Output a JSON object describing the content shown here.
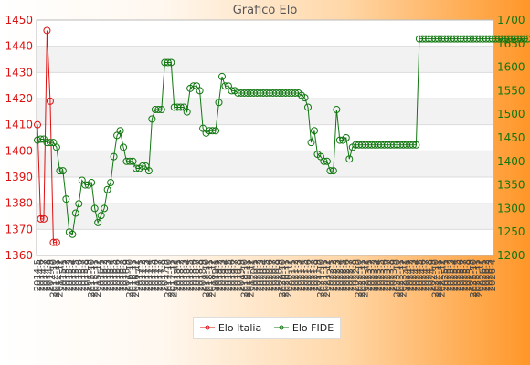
{
  "chart_data": {
    "type": "line",
    "title": "Grafico Elo",
    "left_axis": {
      "ylim": [
        1360,
        1450
      ],
      "ticks": [
        1360,
        1370,
        1380,
        1390,
        1400,
        1410,
        1420,
        1430,
        1440,
        1450
      ],
      "color": "#dd1111"
    },
    "right_axis": {
      "ylim": [
        1200,
        1700
      ],
      "ticks": [
        1200,
        1250,
        1300,
        1350,
        1400,
        1450,
        1500,
        1550,
        1600,
        1650,
        1700
      ],
      "color": "#117711"
    },
    "x_tick_labels": [
      "2014-5",
      "2014-6",
      "2014-7",
      "2014-8",
      "2014-9",
      "2014-10",
      "2014-11",
      "2014-12",
      "2015-1",
      "2015-2",
      "2015-3",
      "2015-4",
      "2015-5",
      "2015-6",
      "2015-7",
      "2015-8",
      "2015-9",
      "2015-10",
      "2015-11",
      "2015-12",
      "2016-1",
      "2016-2",
      "2016-3",
      "2016-4",
      "2016-5",
      "2016-6",
      "2016-7",
      "2016-8",
      "2016-9",
      "2016-10",
      "2016-11",
      "2016-12",
      "2017-1",
      "2017-2",
      "2017-3",
      "2017-4",
      "2017-5",
      "2017-6",
      "2017-7",
      "2017-8",
      "2017-9",
      "2017-10",
      "2017-11",
      "2017-12",
      "2018-1",
      "2018-2",
      "2018-3",
      "2018-4",
      "2018-5",
      "2018-6",
      "2018-7",
      "2018-8",
      "2018-9",
      "2018-10",
      "2018-11",
      "2018-12",
      "2019-1",
      "2019-2",
      "2019-3",
      "2019-4",
      "2019-5",
      "2019-6",
      "2019-7",
      "2019-8",
      "2019-9",
      "2019-10",
      "2019-11",
      "2019-12",
      "2020-1",
      "2020-2",
      "2020-3",
      "2020-4",
      "2020-5",
      "2020-6",
      "2020-7",
      "2020-8",
      "2020-9",
      "2020-10",
      "2020-11",
      "2020-12",
      "2021-1",
      "2021-2",
      "2021-3",
      "2021-4",
      "2021-5",
      "2021-6",
      "2021-7",
      "2021-8",
      "2021-9",
      "2021-10",
      "2021-11",
      "2021-12",
      "2022-1",
      "2022-2",
      "2022-3",
      "2022-4",
      "2022-5",
      "2022-6",
      "2022-7",
      "2022-8",
      "2022-9",
      "2022-10",
      "2022-11",
      "2022-12",
      "2023-1",
      "2023-2",
      "2023-3",
      "2023-4",
      "2023-5",
      "2023-6",
      "2023-7",
      "2023-8",
      "2023-9",
      "2023-10",
      "2023-11",
      "2023-12",
      "2024-1",
      "2024-2",
      "2024-3",
      "2024-4",
      "2024-5",
      "2024-6",
      "2024-7",
      "2024-8",
      "2024-9",
      "2024-10",
      "2024-11",
      "2024-12",
      "2025-1",
      "2025-2",
      "2025-3",
      "2025-4",
      "2025-5",
      "2025-6",
      "2025-7",
      "2025-8",
      "2025-9",
      "2025-10",
      "2025-11",
      "2025-12",
      "2026-1",
      "2026-2",
      "2026-3",
      "2026-4"
    ],
    "grid": true,
    "legend_position": "bottom",
    "series": [
      {
        "name": "Elo Italia",
        "axis": "left",
        "color": "#dd1111",
        "values": [
          1410,
          1374,
          1374,
          1446,
          1419,
          1365,
          1365
        ]
      },
      {
        "name": "Elo FIDE",
        "axis": "right",
        "color": "#117711",
        "values": [
          1445,
          1447,
          1447,
          1440,
          1440,
          1440,
          1430,
          1380,
          1380,
          1320,
          1250,
          1245,
          1290,
          1310,
          1360,
          1350,
          1350,
          1355,
          1300,
          1270,
          1285,
          1300,
          1340,
          1355,
          1410,
          1455,
          1465,
          1430,
          1400,
          1400,
          1400,
          1385,
          1385,
          1390,
          1390,
          1380,
          1490,
          1510,
          1510,
          1510,
          1610,
          1610,
          1610,
          1515,
          1515,
          1515,
          1515,
          1505,
          1555,
          1560,
          1560,
          1550,
          1470,
          1460,
          1465,
          1465,
          1465,
          1525,
          1580,
          1560,
          1560,
          1550,
          1550,
          1545,
          1545,
          1545,
          1545,
          1545,
          1545,
          1545,
          1545,
          1545,
          1545,
          1545,
          1545,
          1545,
          1545,
          1545,
          1545,
          1545,
          1545,
          1545,
          1545,
          1540,
          1535,
          1515,
          1440,
          1465,
          1415,
          1410,
          1400,
          1400,
          1380,
          1380,
          1510,
          1445,
          1445,
          1450,
          1405,
          1430,
          1435,
          1435,
          1435,
          1435,
          1435,
          1435,
          1435,
          1435,
          1435,
          1435,
          1435,
          1435,
          1435,
          1435,
          1435,
          1435,
          1435,
          1435,
          1435,
          1435,
          1660,
          1660,
          1660,
          1660,
          1660,
          1660,
          1660,
          1660,
          1660,
          1660,
          1660,
          1660,
          1660,
          1660,
          1660,
          1660,
          1660,
          1660,
          1660,
          1660,
          1660,
          1660,
          1660,
          1660,
          1660,
          1660,
          1660,
          1660,
          1660,
          1660,
          1660,
          1660,
          1660,
          1660,
          1660
        ]
      }
    ]
  }
}
